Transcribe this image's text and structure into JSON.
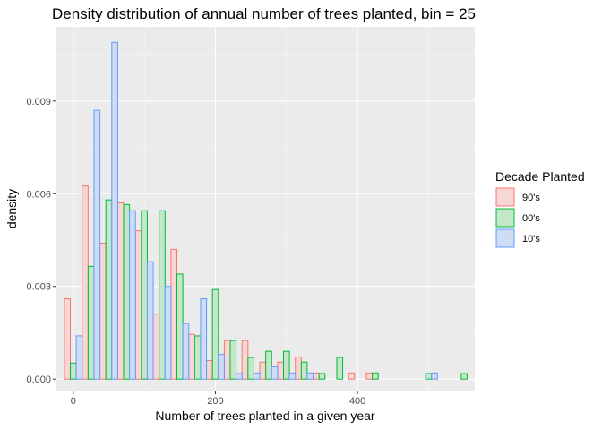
{
  "chart_data": {
    "type": "histogram",
    "title": "Density distribution of annual number of trees planted, bin = 25",
    "xlabel": "Number of trees planted in a given year",
    "ylabel": "density",
    "xlim": [
      -25,
      565
    ],
    "ylim": [
      -0.0004,
      0.0114
    ],
    "x_ticks": [
      0,
      200,
      400
    ],
    "x_tick_labels": [
      "0",
      "200",
      "400"
    ],
    "y_ticks": [
      0,
      0.003,
      0.006,
      0.009
    ],
    "y_tick_labels": [
      "0.000",
      "0.003",
      "0.006",
      "0.009"
    ],
    "x_minor_ticks": [
      100,
      300,
      500
    ],
    "y_minor_ticks": [
      0.0015,
      0.0045,
      0.0075,
      0.0105
    ],
    "bin_width": 25,
    "bin_centers": [
      0,
      25,
      50,
      75,
      100,
      125,
      150,
      175,
      200,
      225,
      250,
      275,
      300,
      325,
      350,
      375,
      400,
      425,
      450,
      475,
      500,
      525,
      550
    ],
    "grid": true,
    "legend_position": "right",
    "legend": {
      "title": "Decade Planted",
      "entries": [
        "90's",
        "00's",
        "10's"
      ]
    },
    "series": [
      {
        "name": "90's",
        "stroke": "#F8766D",
        "fill": "#F8D6D4",
        "values": [
          0.0026,
          0.00625,
          0.0044,
          0.0057,
          0.0048,
          0.0021,
          0.0042,
          0.00145,
          0.0006,
          0.00125,
          0.00125,
          0.00055,
          0.00055,
          0.00072,
          0.0002,
          0.0,
          0.0002,
          0.0002,
          0.0,
          0.0,
          0.0,
          0.0,
          0.0
        ]
      },
      {
        "name": "00's",
        "stroke": "#00BA38",
        "fill": "#C4E6C9",
        "values": [
          0.00052,
          0.00365,
          0.0058,
          0.00565,
          0.00545,
          0.00545,
          0.0034,
          0.0014,
          0.0029,
          0.00125,
          0.0007,
          0.0009,
          0.0009,
          0.00055,
          0.00018,
          0.0007,
          0.0,
          0.0002,
          0.0,
          0.0,
          0.00018,
          0.0,
          0.00018
        ]
      },
      {
        "name": "10's",
        "stroke": "#619CFF",
        "fill": "#CFDCF3",
        "values": [
          0.0014,
          0.0087,
          0.0109,
          0.00545,
          0.0038,
          0.003,
          0.0018,
          0.0026,
          0.0008,
          0.00018,
          0.0002,
          0.0004,
          0.0002,
          0.0002,
          0.0,
          0.0,
          0.0,
          0.0,
          0.0,
          0.0,
          0.0002,
          0.0,
          0.0
        ]
      }
    ]
  },
  "colors": {
    "panel_background": "#EBEBEB",
    "grid_major": "#FFFFFF",
    "grid_minor": "#F5F5F5"
  }
}
